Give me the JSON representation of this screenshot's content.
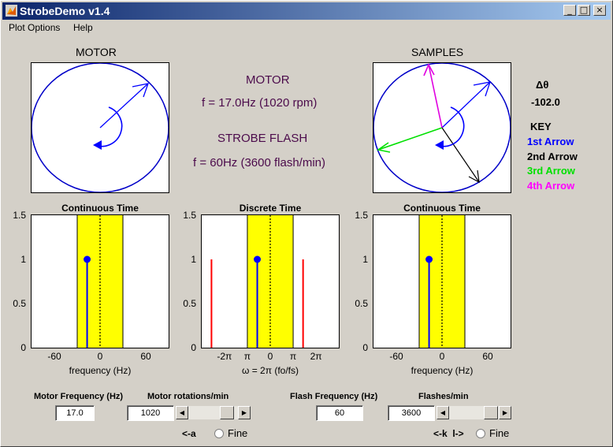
{
  "window": {
    "title": "StrobeDemo v1.4",
    "btn_min": "_",
    "btn_max": "□",
    "btn_close": "×"
  },
  "menu": {
    "plot_options": "Plot Options",
    "help": "Help"
  },
  "motor_panel": {
    "title": "MOTOR"
  },
  "samples_panel": {
    "title": "SAMPLES"
  },
  "info": {
    "motor_heading": "MOTOR",
    "motor_freq": "f = 17.0Hz (1020 rpm)",
    "strobe_heading": "STROBE FLASH",
    "strobe_freq": "f = 60Hz (3600 flash/min)"
  },
  "delta": {
    "label": "Δθ",
    "value": "-102.0"
  },
  "key": {
    "title": "KEY",
    "items": [
      {
        "label": "1st Arrow",
        "color": "#0000ff"
      },
      {
        "label": "2nd Arrow",
        "color": "#000000"
      },
      {
        "label": "3rd Arrow",
        "color": "#00ff00"
      },
      {
        "label": "4th Arrow",
        "color": "#ff00ff"
      }
    ]
  },
  "chart_data": [
    {
      "type": "stem",
      "title": "Continuous Time",
      "xlabel": "frequency (Hz)",
      "xlim": [
        -90,
        90
      ],
      "ylim": [
        0,
        1.5
      ],
      "xticks": [
        "-60",
        "0",
        "60"
      ],
      "yticks": [
        "0",
        "0.5",
        "1",
        "1.5"
      ],
      "band": [
        -30,
        30
      ],
      "stems": [
        {
          "x": -17,
          "y": 1,
          "color": "#0000ff",
          "marker": true
        }
      ]
    },
    {
      "type": "stem",
      "title": "Discrete Time",
      "xlabel": "ω = 2π (fo/fs)",
      "xlim": [
        -9.4,
        9.4
      ],
      "ylim": [
        0,
        1.5
      ],
      "xticks": [
        "-2π",
        "π",
        "0",
        "π",
        "2π"
      ],
      "yticks": [
        "0",
        "0.5",
        "1",
        "1.5"
      ],
      "band": [
        -3.14,
        3.14
      ],
      "stems": [
        {
          "x": -8.06,
          "y": 1,
          "color": "#ff0000",
          "marker": false
        },
        {
          "x": -1.78,
          "y": 1,
          "color": "#0000ff",
          "marker": true
        },
        {
          "x": 4.5,
          "y": 1,
          "color": "#ff0000",
          "marker": false
        }
      ]
    },
    {
      "type": "stem",
      "title": "Continuous Time",
      "xlabel": "frequency (Hz)",
      "xlim": [
        -90,
        90
      ],
      "ylim": [
        0,
        1.5
      ],
      "xticks": [
        "-60",
        "0",
        "60"
      ],
      "yticks": [
        "0",
        "0.5",
        "1",
        "1.5"
      ],
      "band": [
        -30,
        30
      ],
      "stems": [
        {
          "x": -17,
          "y": 1,
          "color": "#0000ff",
          "marker": true
        }
      ]
    }
  ],
  "controls": {
    "motor_freq_label": "Motor Frequency (Hz)",
    "motor_freq_value": "17.0",
    "motor_rot_label": "Motor rotations/min",
    "motor_rot_value": "1020",
    "motor_hint": "<-a",
    "motor_fine": "Fine",
    "flash_freq_label": "Flash Frequency (Hz)",
    "flash_freq_value": "60",
    "flash_rate_label": "Flashes/min",
    "flash_rate_value": "3600",
    "flash_hint": "<-k  l->",
    "flash_fine": "Fine"
  }
}
